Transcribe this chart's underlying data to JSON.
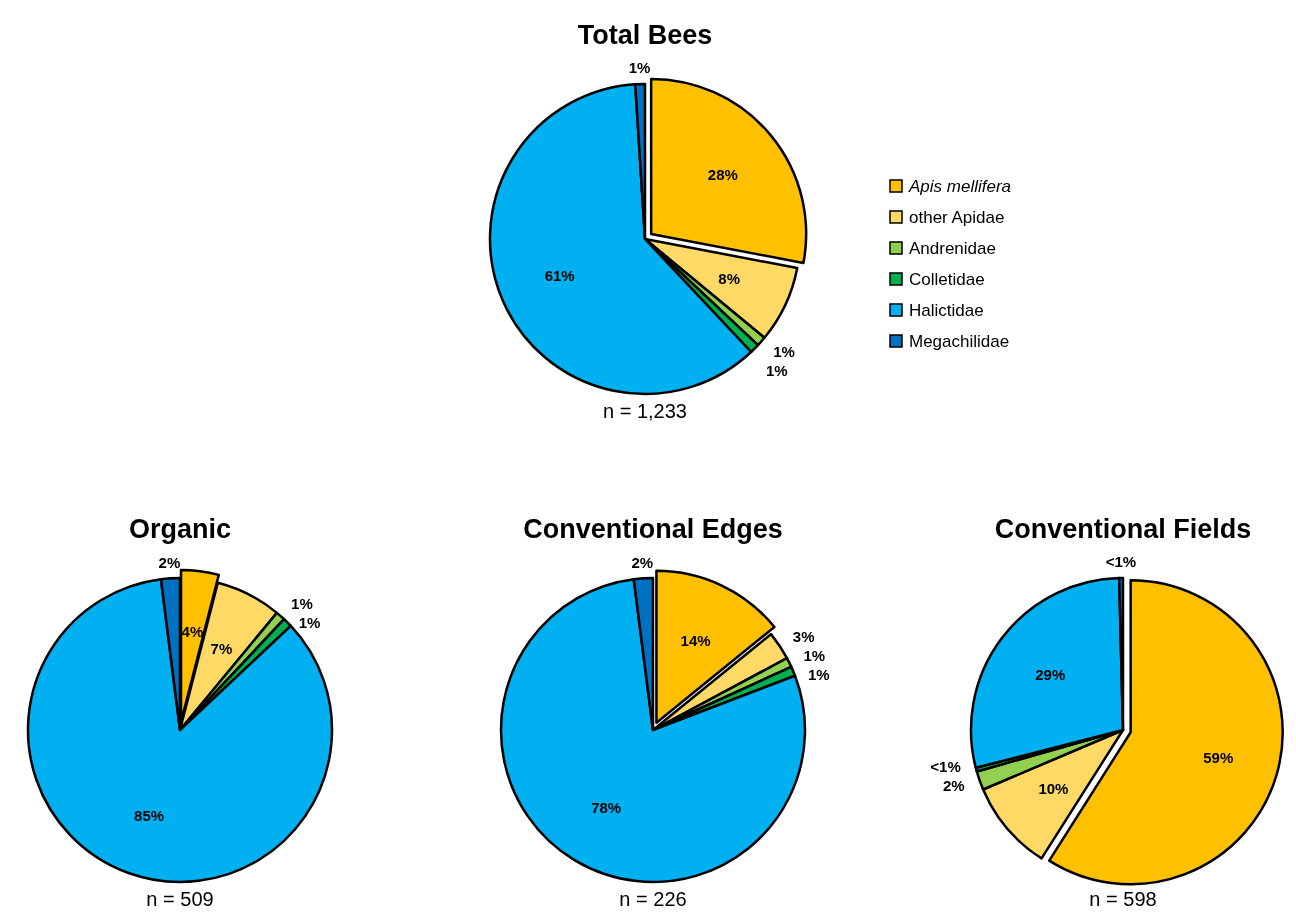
{
  "chart_data": [
    {
      "type": "pie",
      "title": "Total Bees",
      "categories": [
        "Apis mellifera",
        "other Apidae",
        "Andrenidae",
        "Colletidae",
        "Halictidae",
        "Megachilidae"
      ],
      "values": [
        28,
        8,
        1,
        1,
        61,
        1
      ],
      "value_labels": [
        "28%",
        "8%",
        "1%",
        "1%",
        "61%",
        "1%"
      ],
      "colors": [
        "#ffc000",
        "#ffd966",
        "#92d050",
        "#00b050",
        "#00b0f0",
        "#0070c0"
      ],
      "legend": "right",
      "annotations": [
        "n = 1,233"
      ]
    },
    {
      "type": "pie",
      "title": "Organic",
      "categories": [
        null,
        null,
        null,
        null,
        null,
        null
      ],
      "values": [
        4,
        7,
        1,
        1,
        85,
        2
      ],
      "value_labels": [
        "4%",
        "7%",
        "1%",
        "1%",
        "85%",
        "2%"
      ],
      "colors": [
        "#ffc000",
        "#ffd966",
        "#92d050",
        "#00b050",
        "#00b0f0",
        "#0070c0"
      ],
      "annotations": [
        "n = 509"
      ]
    },
    {
      "type": "pie",
      "title": "Conventional Edges",
      "categories": [
        null,
        null,
        null,
        null,
        null,
        null
      ],
      "values": [
        14,
        3,
        1,
        1,
        78,
        2
      ],
      "value_labels": [
        "14%",
        "3%",
        "1%",
        "1%",
        "78%",
        "2%"
      ],
      "colors": [
        "#ffc000",
        "#ffd966",
        "#92d050",
        "#00b050",
        "#00b0f0",
        "#0070c0"
      ],
      "annotations": [
        "n = 226"
      ]
    },
    {
      "type": "pie",
      "title": "Conventional Fields",
      "categories": [
        null,
        null,
        null,
        null,
        null,
        null
      ],
      "values": [
        59,
        9.6,
        2,
        0.4,
        28.6,
        0.4
      ],
      "value_labels": [
        "59%",
        "10%",
        "2%",
        "<1%",
        "29%",
        "<1%"
      ],
      "colors": [
        "#ffc000",
        "#ffd966",
        "#92d050",
        "#00b050",
        "#00b0f0",
        "#0070c0"
      ],
      "annotations": [
        "n = 598"
      ]
    }
  ]
}
